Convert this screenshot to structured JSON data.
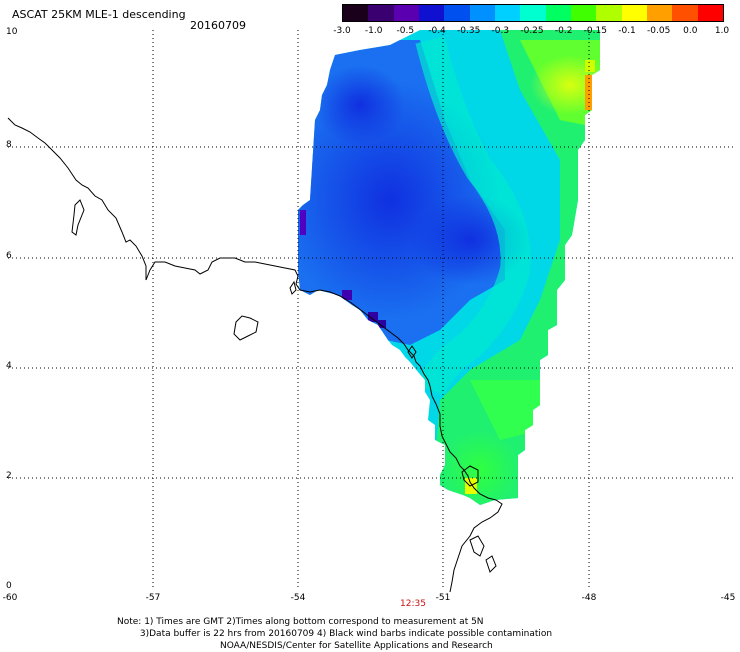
{
  "title": "ASCAT 25KM MLE-1 descending",
  "date": "20160709",
  "colorbar": {
    "labels": [
      "-3.0",
      "-1.0",
      "-0.5",
      "-0.4",
      "-0.35",
      "-0.3",
      "-0.25",
      "-0.2",
      "-0.15",
      "-0.1",
      "-0.05",
      "0.0",
      "1.0"
    ],
    "colors": [
      "#1a001a",
      "#3a0070",
      "#5a00b0",
      "#1010d0",
      "#0050f0",
      "#0090ff",
      "#00d0ff",
      "#00ffd0",
      "#00ff60",
      "#40ff00",
      "#b0ff00",
      "#ffff00",
      "#ffa000",
      "#ff5000",
      "#ff0000"
    ]
  },
  "axes": {
    "y_labels": [
      "10",
      "8",
      "6",
      "4",
      "2",
      "0"
    ],
    "x_labels": [
      "-60",
      "-57",
      "-54",
      "-51",
      "-48",
      "-45"
    ]
  },
  "time_label": "12:35",
  "notes": [
    "Note: 1) Times are GMT 2)Times along bottom correspond to measurement at 5N",
    "        3)Data buffer is 22 hrs from 20160709 4) Black wind barbs indicate possible contamination",
    "                                    NOAA/NESDIS/Center for Satellite Applications and Research"
  ]
}
